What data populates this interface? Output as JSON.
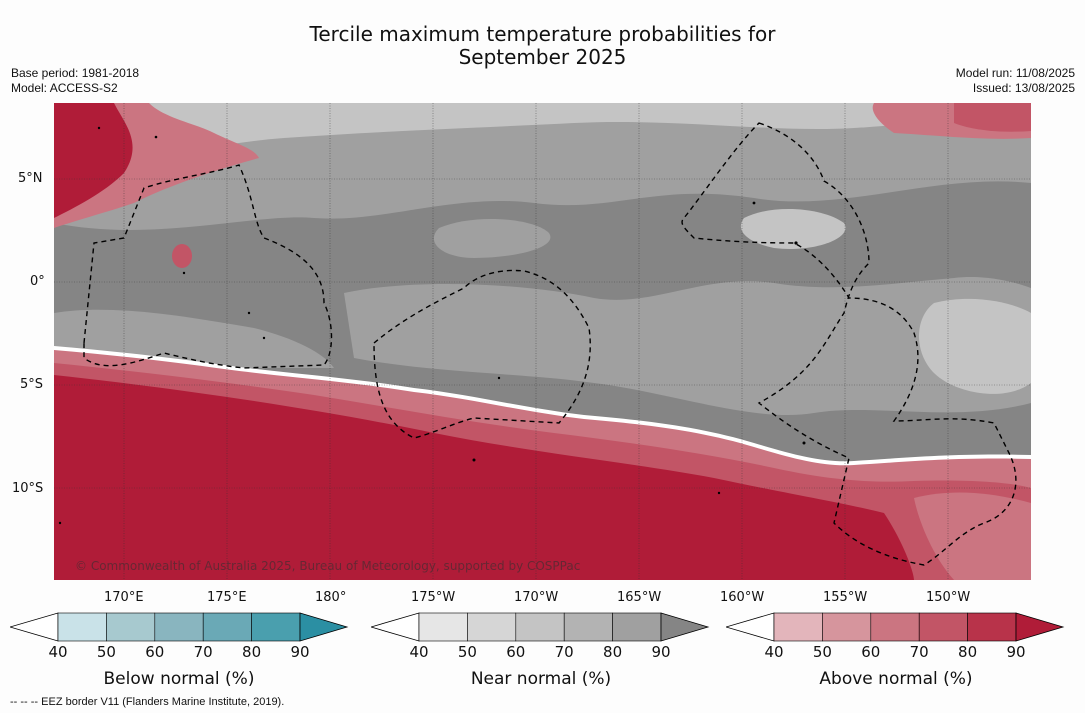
{
  "title": {
    "line1": "Tercile maximum temperature probabilities for",
    "line2": "September 2025"
  },
  "meta_left": {
    "base_period": "Base period: 1981-2018",
    "model": "Model: ACCESS-S2"
  },
  "meta_right": {
    "model_run": "Model run: 11/08/2025",
    "issued": "Issued: 13/08/2025"
  },
  "lat_labels": [
    "5°N",
    "0°",
    "5°S",
    "10°S"
  ],
  "lon_labels": [
    "170°E",
    "175°E",
    "180°",
    "175°W",
    "170°W",
    "165°W",
    "160°W",
    "155°W",
    "150°W"
  ],
  "credit": "© Commonwealth of Australia 2025, Bureau of Meteorology, supported by COSPPac",
  "footnote": "-- --  -- EEZ border V11 (Flanders Marine Institute, 2019).",
  "colorbars": [
    {
      "title": "Below normal (%)",
      "ticks": [
        "40",
        "50",
        "60",
        "70",
        "80",
        "90"
      ],
      "colors": [
        "#c9e2e8",
        "#a7c9cf",
        "#89b5bf",
        "#6aa9b6",
        "#4a9fae",
        "#2b8fa3"
      ]
    },
    {
      "title": "Near normal (%)",
      "ticks": [
        "40",
        "50",
        "60",
        "70",
        "80",
        "90"
      ],
      "colors": [
        "#e6e6e6",
        "#d6d6d6",
        "#c4c4c4",
        "#b3b3b3",
        "#a0a0a0",
        "#858585"
      ]
    },
    {
      "title": "Above normal (%)",
      "ticks": [
        "40",
        "50",
        "60",
        "70",
        "80",
        "90"
      ],
      "colors": [
        "#e3b5bb",
        "#d6959d",
        "#cb7581",
        "#c25566",
        "#b8334a",
        "#b01c38"
      ]
    }
  ],
  "colors": {
    "above_90": "#b01c38",
    "near_90": "#858585",
    "near_70": "#a0a0a0",
    "near_60": "#b3b3b3",
    "near_50": "#c4c4c4"
  }
}
